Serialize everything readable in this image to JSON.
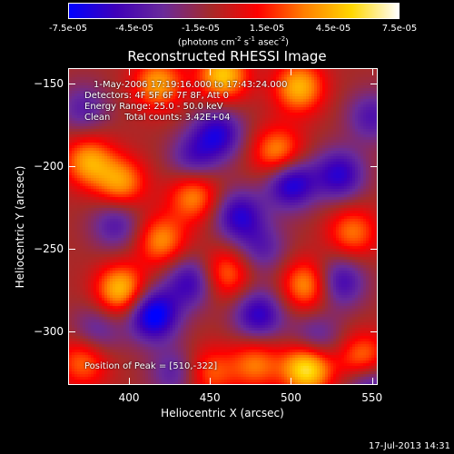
{
  "colorbar": {
    "ticks": [
      "-7.5e-05",
      "-4.5e-05",
      "-1.5e-05",
      "1.5e-05",
      "4.5e-05",
      "7.5e-05"
    ],
    "units_prefix": "(photons cm",
    "units_sup1": "-2",
    "units_mid1": " s",
    "units_sup2": "-1",
    "units_mid2": " asec",
    "units_sup3": "-2",
    "units_suffix": ")",
    "colors": [
      "#0000ff",
      "#3f00b8",
      "#6a2a9a",
      "#a52a2a",
      "#ff0000",
      "#ff7f00",
      "#ffd700",
      "#ffffff"
    ]
  },
  "chart_data": {
    "type": "heatmap",
    "title": "Reconstructed RHESSI Image",
    "xlabel": "Heliocentric X (arcsec)",
    "ylabel": "Heliocentric Y (arcsec)",
    "xlim": [
      363,
      553
    ],
    "ylim": [
      -332,
      -141
    ],
    "xticks": [
      400,
      450,
      500,
      550
    ],
    "yticks": [
      -150,
      -200,
      -250,
      -300
    ],
    "zlim": [
      -7.5e-05,
      7.5e-05
    ],
    "annotations": {
      "time_range": "1-May-2006 17:19:16.000 to 17:43:24.000",
      "detectors": "Detectors: 4F 5F 6F 7F 8F, Att 0",
      "energy": "Energy Range: 25.0 - 50.0 keV",
      "clean": "Clean     Total counts: 3.42E+04",
      "peak": "Position of Peak = [510,-322]"
    },
    "peaks": [
      {
        "x": 510,
        "y": -322,
        "v": 7.5e-05
      },
      {
        "x": 458,
        "y": -145,
        "v": 6e-05
      },
      {
        "x": 505,
        "y": -152,
        "v": 5.5e-05
      },
      {
        "x": 418,
        "y": -150,
        "v": 5e-05
      },
      {
        "x": 492,
        "y": -192,
        "v": 5e-05
      },
      {
        "x": 375,
        "y": -197,
        "v": 5e-05
      },
      {
        "x": 395,
        "y": -210,
        "v": 4.8e-05
      },
      {
        "x": 440,
        "y": -218,
        "v": 4.5e-05
      },
      {
        "x": 538,
        "y": -240,
        "v": 4e-05
      },
      {
        "x": 420,
        "y": -245,
        "v": 4.5e-05
      },
      {
        "x": 395,
        "y": -275,
        "v": 6e-05
      },
      {
        "x": 460,
        "y": -265,
        "v": 4e-05
      },
      {
        "x": 510,
        "y": -272,
        "v": 5e-05
      },
      {
        "x": 545,
        "y": -318,
        "v": 5.5e-05
      },
      {
        "x": 478,
        "y": -320,
        "v": 4e-05
      },
      {
        "x": 450,
        "y": -325,
        "v": 3.5e-05
      },
      {
        "x": 372,
        "y": -318,
        "v": 4e-05
      },
      {
        "x": 415,
        "y": -290,
        "v": -7e-05
      },
      {
        "x": 500,
        "y": -210,
        "v": -6e-05
      },
      {
        "x": 455,
        "y": -180,
        "v": -5e-05
      },
      {
        "x": 530,
        "y": -205,
        "v": -5e-05
      },
      {
        "x": 468,
        "y": -230,
        "v": -5e-05
      },
      {
        "x": 438,
        "y": -270,
        "v": -4.5e-05
      },
      {
        "x": 480,
        "y": -290,
        "v": -5e-05
      },
      {
        "x": 530,
        "y": -270,
        "v": -4.5e-05
      },
      {
        "x": 548,
        "y": -330,
        "v": -5e-05
      },
      {
        "x": 392,
        "y": -235,
        "v": -3.5e-05
      },
      {
        "x": 440,
        "y": -195,
        "v": -3.5e-05
      },
      {
        "x": 380,
        "y": -300,
        "v": -3e-05
      },
      {
        "x": 515,
        "y": -305,
        "v": -3.5e-05
      },
      {
        "x": 550,
        "y": -170,
        "v": -3.5e-05
      },
      {
        "x": 372,
        "y": -165,
        "v": -3e-05
      },
      {
        "x": 428,
        "y": -325,
        "v": -3e-05
      },
      {
        "x": 482,
        "y": -250,
        "v": -3e-05
      }
    ]
  },
  "timestamp": "17-Jul-2013 14:31"
}
